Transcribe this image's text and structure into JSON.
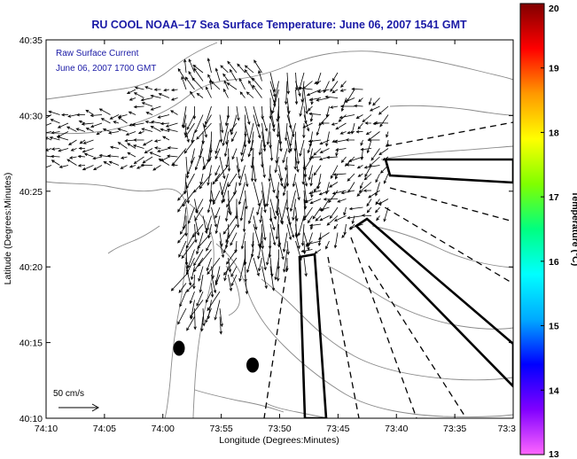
{
  "chart_data": {
    "type": "vector-field-map",
    "title": "RU COOL   NOAA–17  Sea Surface Temperature:  June 06, 2007 1541 GMT",
    "annotation_lines": [
      "Raw Surface Current",
      "June 06, 2007 1700 GMT"
    ],
    "xlabel": "Longitude (Degrees:Minutes)",
    "ylabel": "Latitude (Degrees:Minutes)",
    "x_tick_labels": [
      "74:10",
      "74:05",
      "74:00",
      "73:55",
      "73:50",
      "73:45",
      "73:40",
      "73:35",
      "73:3"
    ],
    "y_tick_labels": [
      "40:10",
      "40:15",
      "40:20",
      "40:25",
      "40:30",
      "40:35"
    ],
    "xlim_minutes_west": [
      10,
      30
    ],
    "ylim_minutes_north": [
      10,
      35
    ],
    "colorbar": {
      "label": "Temperature (°C)",
      "min": 13,
      "max": 20,
      "tick_labels": [
        "13",
        "14",
        "15",
        "16",
        "17",
        "18",
        "19",
        "20"
      ],
      "colors": [
        "#ff66ff",
        "#8000ff",
        "#0000ff",
        "#00aaff",
        "#00ffff",
        "#00ff80",
        "#80ff00",
        "#ffff00",
        "#ff9900",
        "#ff0000",
        "#800000"
      ]
    },
    "scale_label": "50 cm/s",
    "grid": false,
    "legend": "none"
  },
  "colors": {
    "title": "#1a1aa6",
    "land_contour": "#8a8a8a",
    "vectors": "#000000",
    "shipping_lanes": "#000000"
  }
}
